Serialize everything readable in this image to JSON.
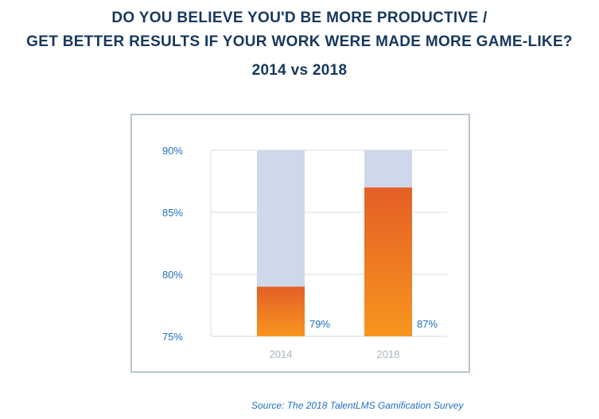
{
  "title": {
    "line1": "DO YOU BELIEVE YOU'D BE MORE PRODUCTIVE /",
    "line2": "GET BETTER RESULTS IF YOUR WORK WERE MADE MORE GAME-LIKE?",
    "line3": "2014 vs 2018"
  },
  "source": "Source: The 2018 TalentLMS Gamification Survey",
  "colors": {
    "title": "#17375e",
    "tick": "#1f6fc0",
    "category": "#a9b4c2",
    "bar_top": "#e55f26",
    "bar_bottom": "#f7951f",
    "bar_background": "#cfd7ea",
    "grid": "#d5dbe3"
  },
  "chart_data": {
    "type": "bar",
    "categories": [
      "2014",
      "2018"
    ],
    "values": [
      79,
      87
    ],
    "data_labels": [
      "79%",
      "87%"
    ],
    "ylim": [
      75,
      90
    ],
    "yticks": [
      75,
      80,
      85,
      90
    ],
    "ytick_labels": [
      "75%",
      "80%",
      "85%",
      "90%"
    ],
    "grid": true,
    "xlabel": "",
    "ylabel": ""
  }
}
